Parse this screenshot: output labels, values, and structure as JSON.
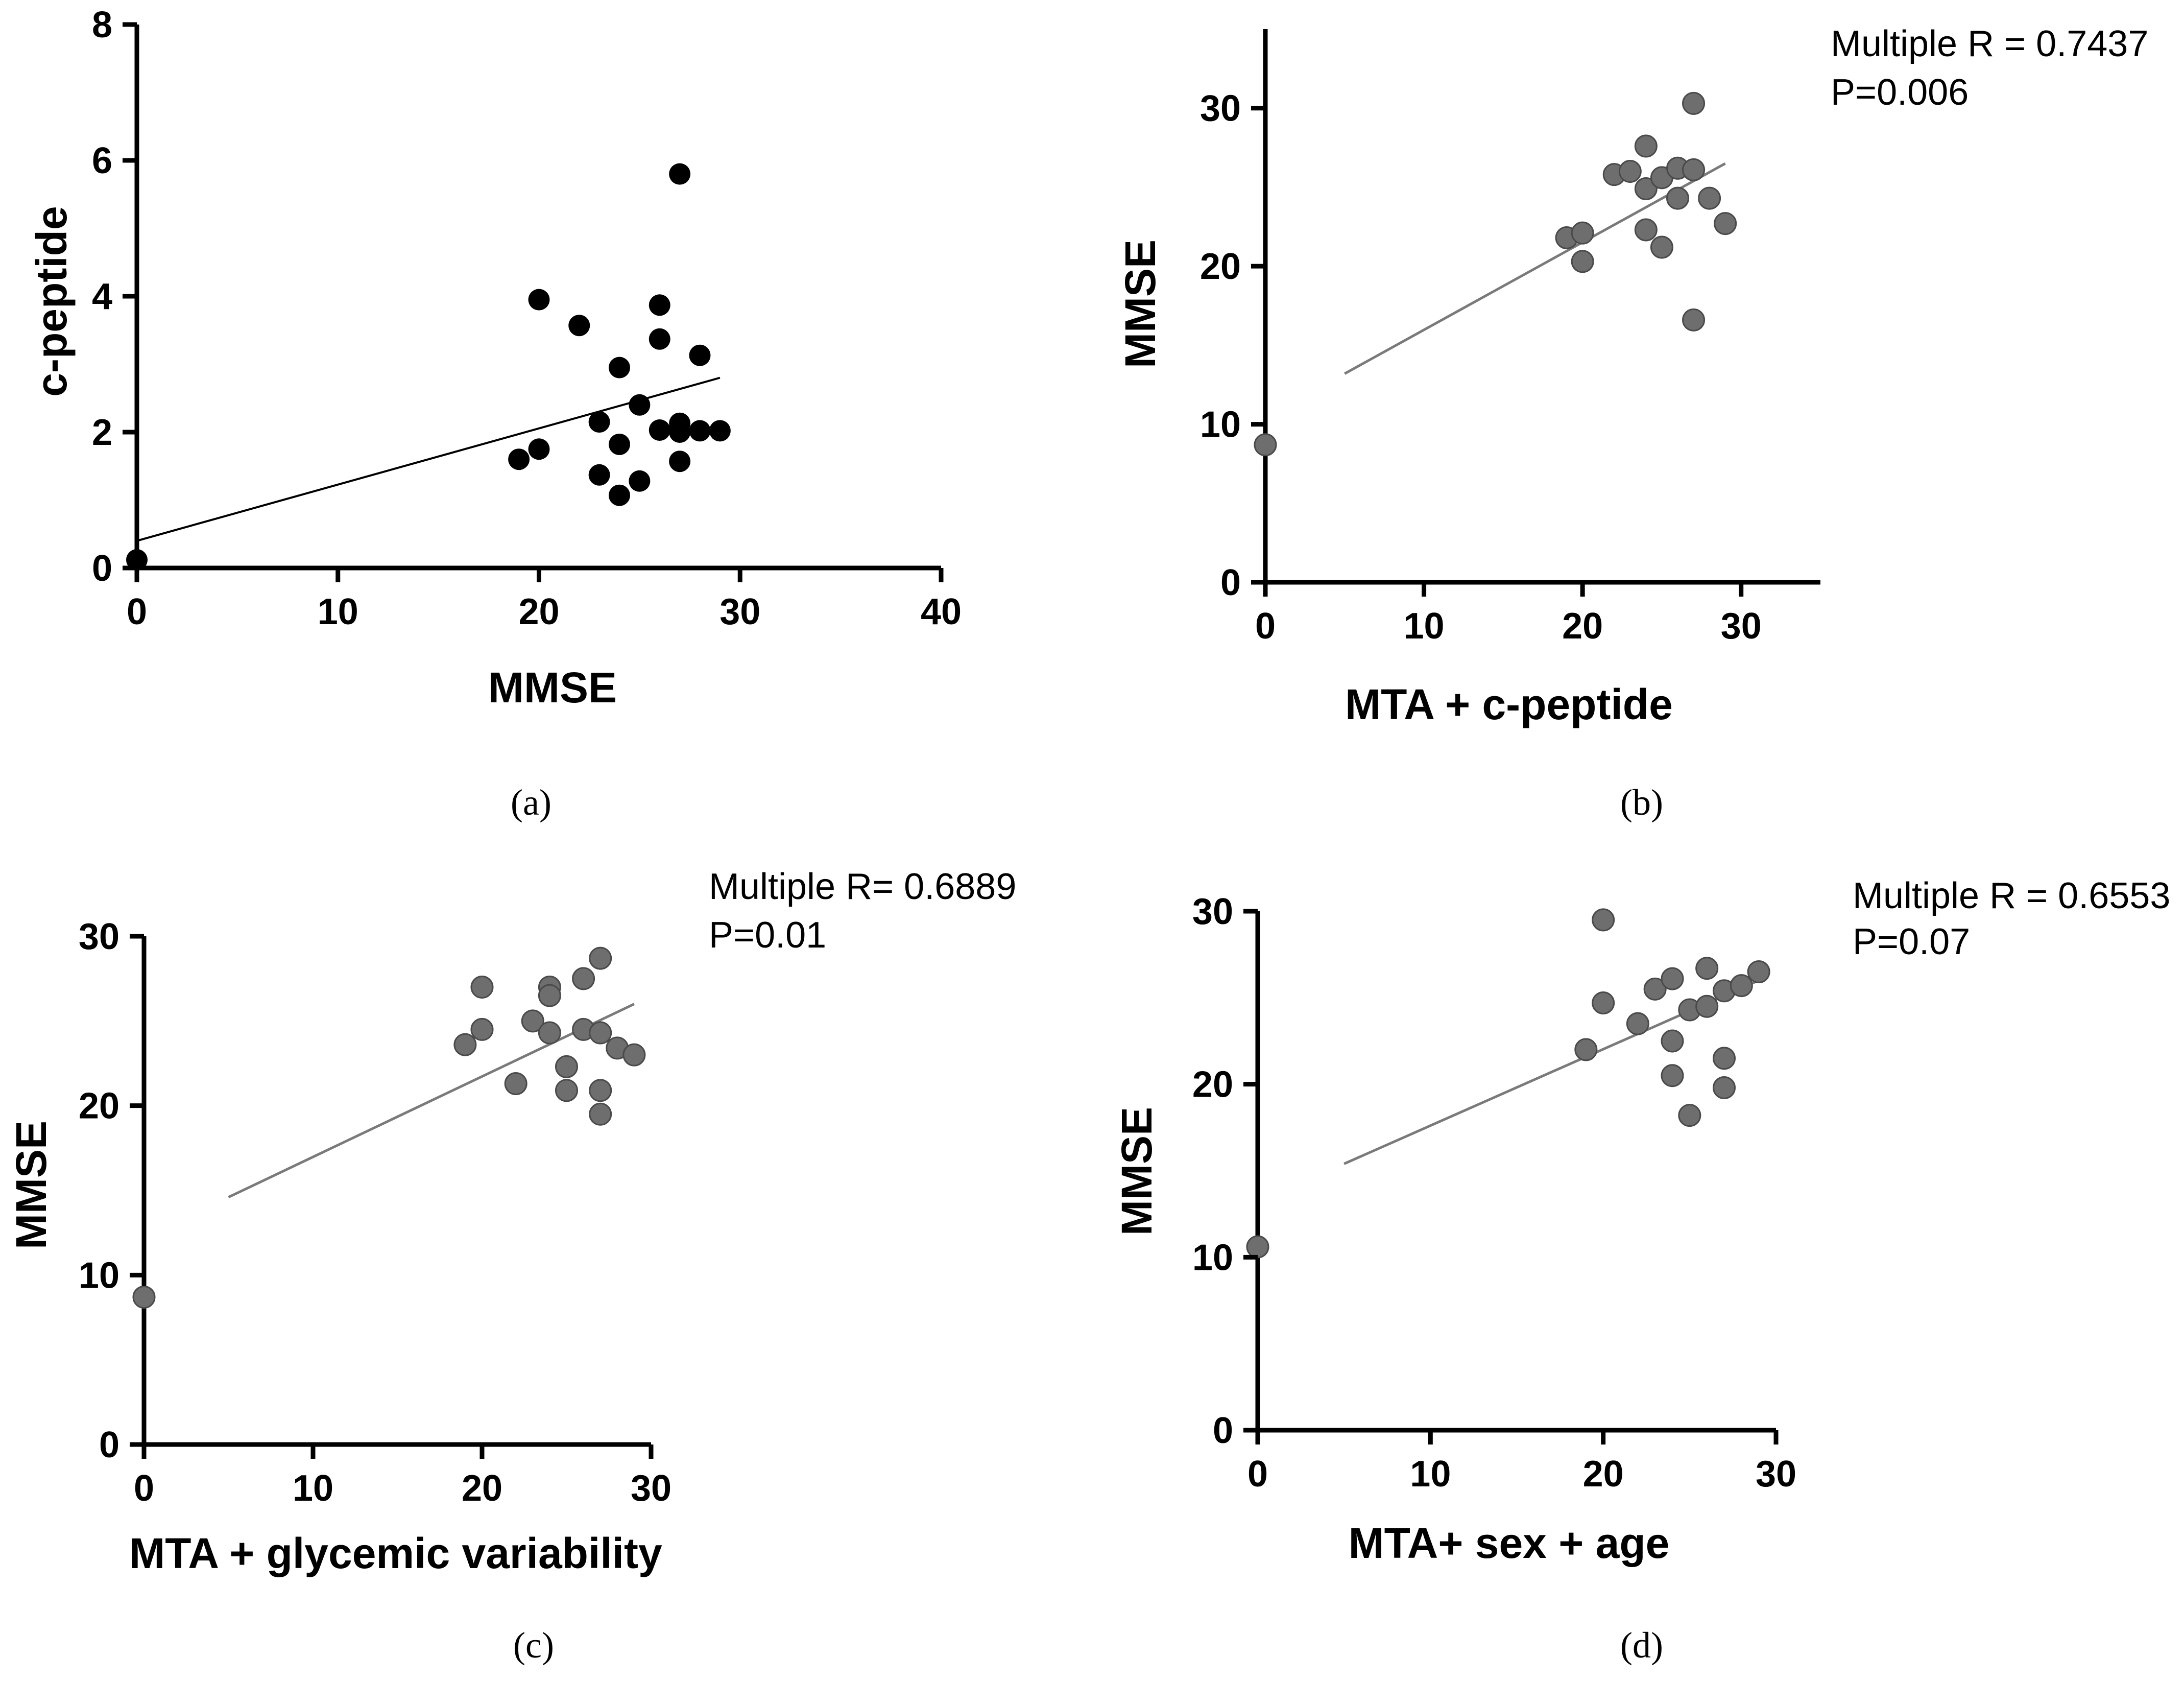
{
  "colors": {
    "axis": "#000000",
    "point_black": "#000000",
    "point_gray": "#6e6e6e",
    "point_gray_stroke": "#4a4a4a",
    "fit_black": "#000000",
    "fit_gray": "#7a7a7a"
  },
  "chart_data": [
    {
      "id": "a",
      "type": "scatter",
      "caption": "(a)",
      "xlabel": "MMSE",
      "ylabel": "c-peptide",
      "xlim": [
        0,
        40
      ],
      "ylim": [
        0,
        8
      ],
      "xticks": [
        0,
        10,
        20,
        30,
        40
      ],
      "yticks": [
        0,
        2,
        4,
        6,
        8
      ],
      "point_style": "black",
      "points": [
        [
          0,
          0.12
        ],
        [
          19,
          1.6
        ],
        [
          20,
          1.75
        ],
        [
          20,
          3.95
        ],
        [
          22,
          3.57
        ],
        [
          23,
          2.15
        ],
        [
          23,
          1.37
        ],
        [
          24,
          2.95
        ],
        [
          24,
          1.82
        ],
        [
          24,
          1.07
        ],
        [
          25,
          2.4
        ],
        [
          25,
          1.28
        ],
        [
          26,
          3.87
        ],
        [
          26,
          3.37
        ],
        [
          26,
          2.03
        ],
        [
          27,
          5.8
        ],
        [
          27,
          2.13
        ],
        [
          27,
          2.0
        ],
        [
          27,
          1.57
        ],
        [
          28,
          3.13
        ],
        [
          28,
          2.02
        ],
        [
          29,
          2.02
        ]
      ],
      "fit_line": [
        [
          0,
          0.4
        ],
        [
          29,
          2.8
        ]
      ]
    },
    {
      "id": "b",
      "type": "scatter",
      "caption": "(b)",
      "xlabel": "MTA + c-peptide",
      "ylabel": "MMSE",
      "xlim": [
        0,
        35
      ],
      "ylim": [
        0,
        35
      ],
      "xticks": [
        0,
        10,
        20,
        30
      ],
      "yticks": [
        0,
        10,
        20,
        30
      ],
      "point_style": "gray",
      "annotation": [
        "Multiple R = 0.7437",
        "P=0.006"
      ],
      "points": [
        [
          0,
          8.7
        ],
        [
          19,
          21.8
        ],
        [
          20,
          22.1
        ],
        [
          20,
          20.3
        ],
        [
          22,
          25.8
        ],
        [
          23,
          26.0
        ],
        [
          24,
          27.6
        ],
        [
          24,
          24.9
        ],
        [
          24,
          22.3
        ],
        [
          25,
          25.6
        ],
        [
          25,
          21.2
        ],
        [
          26,
          26.2
        ],
        [
          26,
          24.3
        ],
        [
          27,
          30.3
        ],
        [
          27,
          26.1
        ],
        [
          27,
          16.6
        ],
        [
          28,
          24.3
        ],
        [
          29,
          22.7
        ]
      ],
      "fit_line": [
        [
          5,
          13.2
        ],
        [
          29,
          26.5
        ]
      ]
    },
    {
      "id": "c",
      "type": "scatter",
      "caption": "(c)",
      "xlabel": "MTA + glycemic variability",
      "ylabel": "MMSE",
      "xlim": [
        0,
        30
      ],
      "ylim": [
        0,
        30
      ],
      "xticks": [
        0,
        10,
        20,
        30
      ],
      "yticks": [
        0,
        10,
        20,
        30
      ],
      "point_style": "gray",
      "annotation": [
        "Multiple R= 0.6889",
        "P=0.01"
      ],
      "points": [
        [
          0,
          8.7
        ],
        [
          19,
          23.6
        ],
        [
          20,
          27.0
        ],
        [
          20,
          24.5
        ],
        [
          22,
          21.3
        ],
        [
          23,
          25.0
        ],
        [
          24,
          27.0
        ],
        [
          24,
          26.5
        ],
        [
          24,
          24.3
        ],
        [
          25,
          22.3
        ],
        [
          25,
          20.9
        ],
        [
          26,
          27.5
        ],
        [
          26,
          24.5
        ],
        [
          27,
          28.7
        ],
        [
          27,
          24.3
        ],
        [
          27,
          20.9
        ],
        [
          27,
          19.5
        ],
        [
          28,
          23.4
        ],
        [
          29,
          23.0
        ]
      ],
      "fit_line": [
        [
          5,
          14.6
        ],
        [
          29,
          26.0
        ]
      ]
    },
    {
      "id": "d",
      "type": "scatter",
      "caption": "(d)",
      "xlabel": "MTA+ sex + age",
      "ylabel": "MMSE",
      "xlim": [
        0,
        30
      ],
      "ylim": [
        0,
        30
      ],
      "xticks": [
        0,
        10,
        20,
        30
      ],
      "yticks": [
        0,
        10,
        20,
        30
      ],
      "point_style": "gray",
      "annotation": [
        "Multiple R = 0.6553",
        "P=0.07"
      ],
      "points": [
        [
          0,
          10.6
        ],
        [
          19,
          22.0
        ],
        [
          20,
          29.5
        ],
        [
          20,
          24.7
        ],
        [
          22,
          23.5
        ],
        [
          23,
          25.5
        ],
        [
          24,
          26.1
        ],
        [
          24,
          22.5
        ],
        [
          24,
          20.5
        ],
        [
          25,
          24.3
        ],
        [
          25,
          18.2
        ],
        [
          26,
          26.7
        ],
        [
          26,
          24.5
        ],
        [
          27,
          25.4
        ],
        [
          27,
          21.5
        ],
        [
          27,
          19.8
        ],
        [
          28,
          25.7
        ],
        [
          29,
          26.5
        ]
      ],
      "fit_line": [
        [
          5,
          15.4
        ],
        [
          29,
          26.0
        ]
      ]
    }
  ]
}
